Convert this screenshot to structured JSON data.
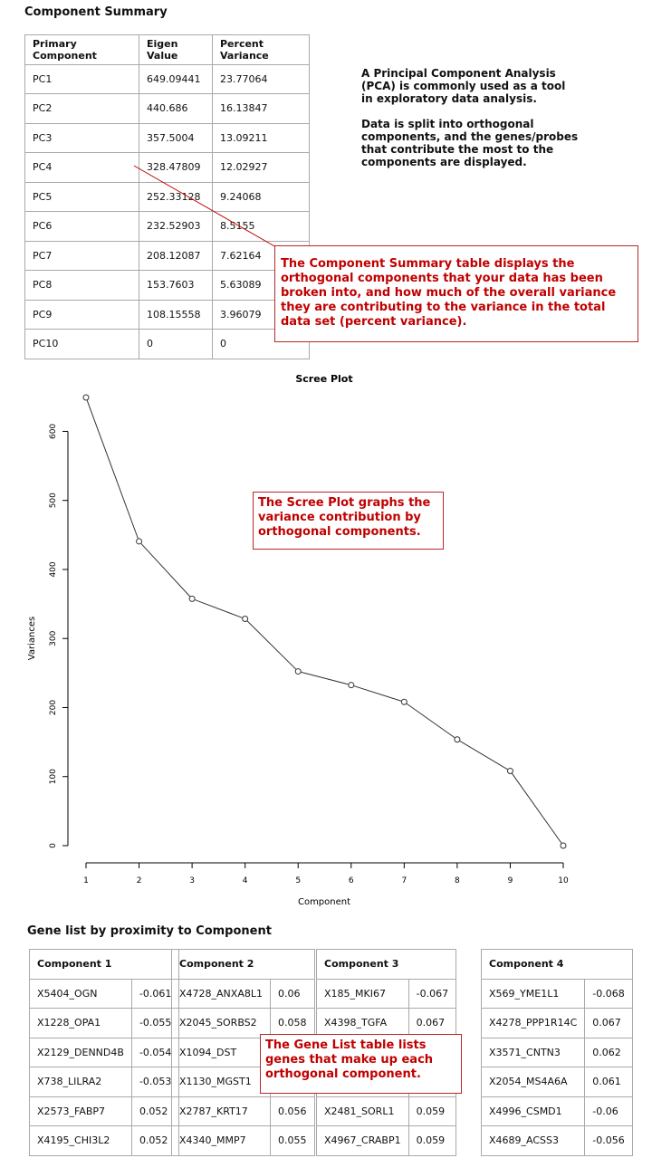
{
  "summary": {
    "title": "Component Summary",
    "headers": [
      "Primary Component",
      "Eigen Value",
      "Percent Variance"
    ],
    "rows": [
      [
        "PC1",
        "649.09441",
        "23.77064"
      ],
      [
        "PC2",
        "440.686",
        "16.13847"
      ],
      [
        "PC3",
        "357.5004",
        "13.09211"
      ],
      [
        "PC4",
        "328.47809",
        "12.02927"
      ],
      [
        "PC5",
        "252.33128",
        "9.24068"
      ],
      [
        "PC6",
        "232.52903",
        "8.5155"
      ],
      [
        "PC7",
        "208.12087",
        "7.62164"
      ],
      [
        "PC8",
        "153.7603",
        "5.63089"
      ],
      [
        "PC9",
        "108.15558",
        "3.96079"
      ],
      [
        "PC10",
        "0",
        "0"
      ]
    ]
  },
  "intro": {
    "p1": "A Principal Component Analysis (PCA) is commonly used as a tool in exploratory data analysis.",
    "p2": "Data is split into orthogonal components, and the genes/probes that contribute the most to the components are displayed."
  },
  "callouts": {
    "summary": "The Component Summary table displays the orthogonal components that your data has been broken into, and how much of the overall variance they are contributing to the variance in the total data set (percent variance).",
    "scree": "The Scree Plot graphs the variance contribution by orthogonal components.",
    "gene": "The Gene List table lists genes that make up each orthogonal component."
  },
  "colors": {
    "callout_red": "#c00000",
    "border_gray": "#a9a9a9"
  },
  "chart_data": {
    "type": "line",
    "title": "Scree Plot",
    "xlabel": "Component",
    "ylabel": "Variances",
    "x": [
      1,
      2,
      3,
      4,
      5,
      6,
      7,
      8,
      9,
      10
    ],
    "values": [
      649.09441,
      440.686,
      357.5004,
      328.47809,
      252.33128,
      232.52903,
      208.12087,
      153.7603,
      108.15558,
      0
    ],
    "xticks": [
      "1",
      "2",
      "3",
      "4",
      "5",
      "6",
      "7",
      "8",
      "9",
      "10"
    ],
    "yticks": [
      "0",
      "100",
      "200",
      "300",
      "400",
      "500",
      "600"
    ],
    "ylim": [
      0,
      649.09441
    ],
    "xlim": [
      1,
      10
    ],
    "grid": false,
    "markers": "open-circle"
  },
  "genes": {
    "title": "Gene list by proximity to Component",
    "components": [
      {
        "header": "Component 1",
        "rows": [
          [
            "X5404_OGN",
            "-0.061"
          ],
          [
            "X1228_OPA1",
            "-0.055"
          ],
          [
            "X2129_DENND4B",
            "-0.054"
          ],
          [
            "X738_LILRA2",
            "-0.053"
          ],
          [
            "X2573_FABP7",
            "0.052"
          ],
          [
            "X4195_CHI3L2",
            "0.052"
          ]
        ]
      },
      {
        "header": "Component 2",
        "rows": [
          [
            "X4728_ANXA8L1",
            "0.06"
          ],
          [
            "X2045_SORBS2",
            "0.058"
          ],
          [
            "X1094_DST",
            ""
          ],
          [
            "X1130_MGST1",
            ""
          ],
          [
            "X2787_KRT17",
            "0.056"
          ],
          [
            "X4340_MMP7",
            "0.055"
          ]
        ]
      },
      {
        "header": "Component 3",
        "rows": [
          [
            "X185_MKI67",
            "-0.067"
          ],
          [
            "X4398_TGFA",
            "0.067"
          ],
          [
            "",
            ""
          ],
          [
            "",
            ""
          ],
          [
            "X2481_SORL1",
            "0.059"
          ],
          [
            "X4967_CRABP1",
            "0.059"
          ]
        ]
      },
      {
        "header": "Component 4",
        "rows": [
          [
            "X569_YME1L1",
            "-0.068"
          ],
          [
            "X4278_PPP1R14C",
            "0.067"
          ],
          [
            "X3571_CNTN3",
            "0.062"
          ],
          [
            "X2054_MS4A6A",
            "0.061"
          ],
          [
            "X4996_CSMD1",
            "-0.06"
          ],
          [
            "X4689_ACSS3",
            "-0.056"
          ]
        ]
      }
    ]
  }
}
